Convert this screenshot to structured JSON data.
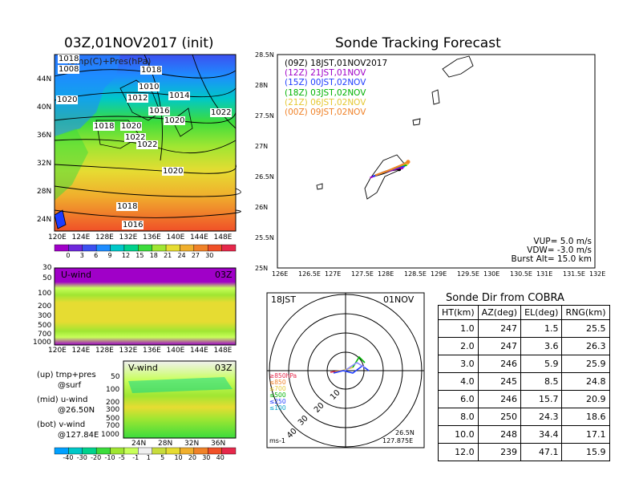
{
  "left": {
    "map_title": "03Z,01NOV2017 (init)",
    "map_overlay_label": "Temp(C)+Pres(hPa)",
    "map_lat_ticks": [
      "44N",
      "40N",
      "36N",
      "32N",
      "28N",
      "24N"
    ],
    "map_lon_ticks": [
      "120E",
      "124E",
      "128E",
      "132E",
      "136E",
      "140E",
      "144E",
      "148E"
    ],
    "isobar_labels": [
      "1018",
      "1008",
      "1018",
      "1010",
      "1012",
      "1014",
      "1020",
      "1016",
      "1022",
      "1018",
      "1020",
      "1020",
      "1022",
      "1022",
      "1020",
      "1018",
      "1016"
    ],
    "temp_colorbar_ticks": [
      "0",
      "3",
      "6",
      "9",
      "12",
      "15",
      "18",
      "21",
      "24",
      "27",
      "30"
    ],
    "temp_colorbar_colors": [
      "#a000c8",
      "#6e28dc",
      "#3c50f0",
      "#1e8cff",
      "#00c8c8",
      "#00d28c",
      "#3cdc3c",
      "#a0e632",
      "#e6dc32",
      "#f0af2d",
      "#f08228",
      "#f05028",
      "#e6284b"
    ],
    "uwind_title": "U-wind",
    "uwind_time": "03Z",
    "uwind_p_ticks": [
      "30",
      "50",
      "100",
      "200",
      "300",
      "500",
      "700",
      "1000"
    ],
    "uwind_lon_ticks": [
      "120E",
      "124E",
      "128E",
      "132E",
      "136E",
      "140E",
      "144E",
      "148E"
    ],
    "vwind_title": "V-wind",
    "vwind_time": "03Z",
    "vwind_p_ticks": [
      "50",
      "100",
      "200",
      "300",
      "500",
      "700",
      "1000"
    ],
    "vwind_lat_ticks": [
      "24N",
      "28N",
      "32N",
      "36N"
    ],
    "desc": [
      {
        "head": "(up) tmp+pres",
        "sub": "@surf"
      },
      {
        "head": "(mid) u-wind",
        "sub": "@26.50N"
      },
      {
        "head": "(bot) v-wind",
        "sub": "@127.84E"
      }
    ],
    "wind_colorbar_ticks": [
      "-40",
      "-30",
      "-20",
      "-10",
      "-5",
      "-1",
      "1",
      "5",
      "10",
      "20",
      "30",
      "40"
    ],
    "wind_colorbar_colors": [
      "#00a0ff",
      "#00c8c8",
      "#00d28c",
      "#3cdc3c",
      "#a0e632",
      "#c8ff5a",
      "#f0f0f0",
      "#c8dc3c",
      "#e6dc32",
      "#f0af2d",
      "#f08228",
      "#f05028",
      "#e6284b"
    ]
  },
  "track": {
    "title": "Sonde Tracking Forecast",
    "lat_ticks": [
      "28.5N",
      "28N",
      "27.5N",
      "27N",
      "26.5N",
      "26N",
      "25.5N",
      "25N"
    ],
    "lon_ticks": [
      "126E",
      "126.5E",
      "127E",
      "127.5E",
      "128E",
      "128.5E",
      "129E",
      "129.5E",
      "130E",
      "130.5E",
      "131E",
      "131.5E",
      "132E"
    ],
    "legend": [
      {
        "label": "(09Z)  18JST,01NOV2017",
        "color": "#000000"
      },
      {
        "label": "(12Z)  21JST,01NOV",
        "color": "#a000c8"
      },
      {
        "label": "(15Z)  00JST,02NOV",
        "color": "#1e3cff"
      },
      {
        "label": "(18Z)  03JST,02NOV",
        "color": "#00b400"
      },
      {
        "label": "(21Z)  06JST,02NOV",
        "color": "#e6c832"
      },
      {
        "label": "(00Z)  09JST,02NOV",
        "color": "#f08228"
      }
    ],
    "params": [
      "VUP=  5.0  m/s",
      "VDW= -3.0  m/s",
      "Burst Alt=  15.0  km"
    ]
  },
  "polar": {
    "time_label": "18JST",
    "date_label": "01NOV",
    "level_labels": [
      {
        "text": "≥850hPa",
        "color": "#e6284b"
      },
      {
        "text": "≤850",
        "color": "#f08228"
      },
      {
        "text": "≤700",
        "color": "#e6c832"
      },
      {
        "text": "≤500",
        "color": "#00b400"
      },
      {
        "text": "≤250",
        "color": "#1e3cff"
      },
      {
        "text": "≤100",
        "color": "#00a0c8"
      }
    ],
    "ring_labels": [
      "10",
      "20",
      "30",
      "40"
    ],
    "unit": "ms-1",
    "lat": "26.5N",
    "lon": "127.875E"
  },
  "table": {
    "title": "Sonde Dir from COBRA",
    "headers": [
      "HT(km)",
      "AZ(deg)",
      "EL(deg)",
      "RNG(km)"
    ]
  },
  "chart_data": [
    {
      "type": "table",
      "title": "Sonde Dir from COBRA",
      "columns": [
        "HT(km)",
        "AZ(deg)",
        "EL(deg)",
        "RNG(km)"
      ],
      "rows": [
        [
          "1.0",
          "247",
          "1.5",
          "25.5"
        ],
        [
          "2.0",
          "247",
          "3.6",
          "26.3"
        ],
        [
          "3.0",
          "246",
          "5.9",
          "25.9"
        ],
        [
          "4.0",
          "245",
          "8.5",
          "24.8"
        ],
        [
          "6.0",
          "246",
          "15.7",
          "20.9"
        ],
        [
          "8.0",
          "250",
          "24.3",
          "18.6"
        ],
        [
          "10.0",
          "248",
          "34.4",
          "17.1"
        ],
        [
          "12.0",
          "239",
          "47.1",
          "15.9"
        ]
      ]
    },
    {
      "type": "line",
      "title": "Sonde Tracking Forecast",
      "xlim": [
        126,
        132
      ],
      "ylim": [
        25,
        28.5
      ],
      "series": [
        {
          "name": "(09Z)",
          "x": [
            127.8,
            128.0,
            128.15,
            128.3
          ],
          "y": [
            26.5,
            26.55,
            26.6,
            26.62
          ]
        },
        {
          "name": "(12Z)",
          "x": [
            127.75,
            127.95,
            128.15,
            128.35
          ],
          "y": [
            26.48,
            26.55,
            26.6,
            26.65
          ]
        },
        {
          "name": "(15Z)",
          "x": [
            127.8,
            128.0,
            128.2,
            128.38
          ],
          "y": [
            26.5,
            26.57,
            26.63,
            26.68
          ]
        },
        {
          "name": "(18Z)",
          "x": [
            127.85,
            128.05,
            128.25,
            128.42
          ],
          "y": [
            26.52,
            26.58,
            26.65,
            26.7
          ]
        },
        {
          "name": "(21Z)",
          "x": [
            127.85,
            128.1,
            128.3,
            128.45
          ],
          "y": [
            26.52,
            26.6,
            26.67,
            26.72
          ]
        },
        {
          "name": "(00Z)",
          "x": [
            127.85,
            128.1,
            128.32,
            128.47
          ],
          "y": [
            26.52,
            26.6,
            26.68,
            26.74
          ]
        }
      ]
    }
  ]
}
